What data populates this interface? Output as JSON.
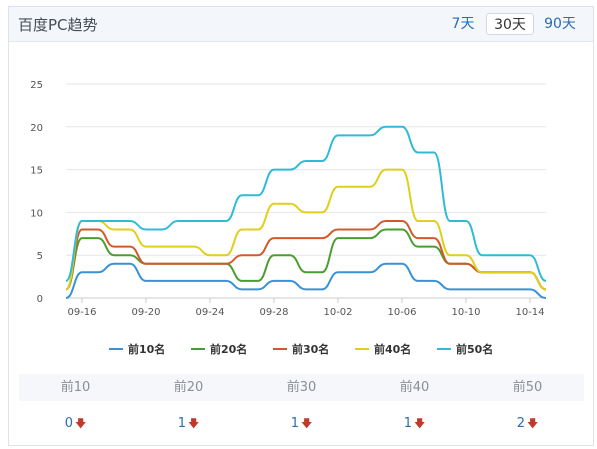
{
  "header": {
    "title": "百度PC趋势",
    "ranges": [
      {
        "label": "7天",
        "active": false
      },
      {
        "label": "30天",
        "active": true
      },
      {
        "label": "90天",
        "active": false
      }
    ]
  },
  "chart_data": {
    "type": "line",
    "title": "",
    "xlabel": "",
    "ylabel": "",
    "ylim": [
      0,
      25
    ],
    "yticks": [
      0,
      5,
      10,
      15,
      20,
      25
    ],
    "grid": "horizontal",
    "legend_position": "bottom",
    "x": [
      "09-15",
      "09-16",
      "09-17",
      "09-18",
      "09-19",
      "09-20",
      "09-21",
      "09-22",
      "09-23",
      "09-24",
      "09-25",
      "09-26",
      "09-27",
      "09-28",
      "09-29",
      "09-30",
      "10-01",
      "10-02",
      "10-03",
      "10-04",
      "10-05",
      "10-06",
      "10-07",
      "10-08",
      "10-09",
      "10-10",
      "10-11",
      "10-12",
      "10-13",
      "10-14",
      "10-15"
    ],
    "xtick_labels": [
      "09-16",
      "09-20",
      "09-24",
      "09-28",
      "10-02",
      "10-06",
      "10-10",
      "10-14"
    ],
    "series": [
      {
        "name": "前10名",
        "color": "#3a92d6",
        "values": [
          0,
          3,
          3,
          4,
          4,
          2,
          2,
          2,
          2,
          2,
          2,
          1,
          1,
          2,
          2,
          1,
          1,
          3,
          3,
          3,
          4,
          4,
          2,
          2,
          1,
          1,
          1,
          1,
          1,
          1,
          0
        ]
      },
      {
        "name": "前20名",
        "color": "#4a9e2f",
        "values": [
          1,
          7,
          7,
          5,
          5,
          4,
          4,
          4,
          4,
          4,
          4,
          2,
          2,
          5,
          5,
          3,
          3,
          7,
          7,
          7,
          8,
          8,
          6,
          6,
          4,
          4,
          3,
          3,
          3,
          3,
          1
        ]
      },
      {
        "name": "前30名",
        "color": "#d4582a",
        "values": [
          1,
          8,
          8,
          6,
          6,
          4,
          4,
          4,
          4,
          4,
          4,
          5,
          5,
          7,
          7,
          7,
          7,
          8,
          8,
          8,
          9,
          9,
          7,
          7,
          4,
          4,
          3,
          3,
          3,
          3,
          1
        ]
      },
      {
        "name": "前40名",
        "color": "#e0cf1b",
        "values": [
          1,
          9,
          9,
          8,
          8,
          6,
          6,
          6,
          6,
          5,
          5,
          8,
          8,
          11,
          11,
          10,
          10,
          13,
          13,
          13,
          15,
          15,
          9,
          9,
          5,
          5,
          3,
          3,
          3,
          3,
          1
        ]
      },
      {
        "name": "前50名",
        "color": "#2fbbd7",
        "values": [
          2,
          9,
          9,
          9,
          9,
          8,
          8,
          9,
          9,
          9,
          9,
          12,
          12,
          15,
          15,
          16,
          16,
          19,
          19,
          19,
          20,
          20,
          17,
          17,
          9,
          9,
          5,
          5,
          5,
          5,
          2
        ]
      }
    ]
  },
  "stats": {
    "columns": [
      {
        "label": "前10",
        "value": "0"
      },
      {
        "label": "前20",
        "value": "1"
      },
      {
        "label": "前30",
        "value": "1"
      },
      {
        "label": "前40",
        "value": "1"
      },
      {
        "label": "前50",
        "value": "2"
      }
    ]
  }
}
